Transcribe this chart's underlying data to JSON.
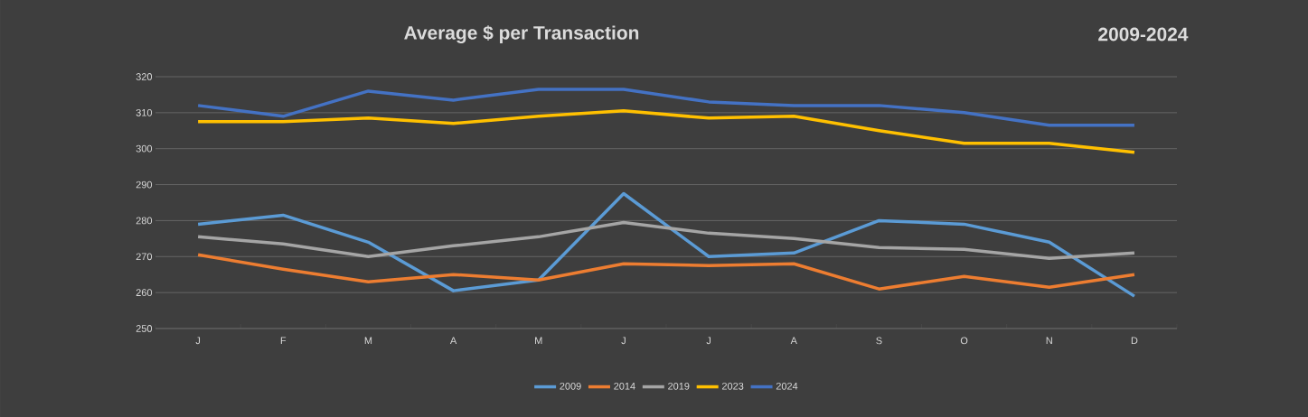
{
  "chart_data": {
    "type": "line",
    "title": "Average $ per Transaction",
    "subtitle": "2009-2024",
    "categories": [
      "J",
      "F",
      "M",
      "A",
      "M",
      "J",
      "J",
      "A",
      "S",
      "O",
      "N",
      "D"
    ],
    "series": [
      {
        "name": "2009",
        "color": "#5b9bd5",
        "values": [
          279,
          281.5,
          274,
          260.5,
          263.5,
          287.5,
          270,
          271,
          280,
          279,
          274,
          259
        ]
      },
      {
        "name": "2014",
        "color": "#ed7d31",
        "values": [
          270.5,
          266.5,
          263,
          265,
          263.5,
          268,
          267.5,
          268,
          261,
          264.5,
          261.5,
          265
        ]
      },
      {
        "name": "2019",
        "color": "#a5a5a5",
        "values": [
          275.5,
          273.5,
          270,
          273,
          275.5,
          279.5,
          276.5,
          275,
          272.5,
          272,
          269.5,
          271
        ]
      },
      {
        "name": "2023",
        "color": "#ffc000",
        "values": [
          307.5,
          307.5,
          308.5,
          307,
          309,
          310.5,
          308.5,
          309,
          305,
          301.5,
          301.5,
          299
        ]
      },
      {
        "name": "2024",
        "color": "#4472c4",
        "values": [
          312,
          309,
          316,
          313.5,
          316.5,
          316.5,
          313,
          312,
          312,
          310,
          306.5,
          306.5
        ]
      }
    ],
    "ylim": [
      250,
      320
    ],
    "yticks": [
      250,
      260,
      270,
      280,
      290,
      300,
      310,
      320
    ],
    "grid": "y",
    "legend": "bottom",
    "marker": "none",
    "line_style": "solid"
  }
}
